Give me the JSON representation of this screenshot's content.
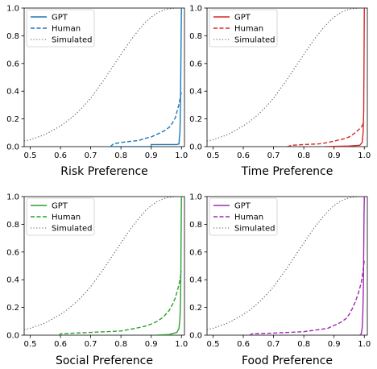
{
  "chart_data": [
    {
      "type": "line",
      "title": "Risk Preference",
      "xlim": [
        0.48,
        1.01
      ],
      "ylim": [
        0,
        1.0
      ],
      "xticks": [
        "0.5",
        "0.6",
        "0.7",
        "0.8",
        "0.9",
        "1.0"
      ],
      "yticks": [
        "0.0",
        "0.2",
        "0.4",
        "0.6",
        "0.8",
        "1.0"
      ],
      "grid": false,
      "legend": "top-left",
      "series": [
        {
          "name": "GPT",
          "style": "solid",
          "color": "#1f77b4",
          "x": [
            0.765,
            0.9,
            0.9,
            0.985,
            0.992,
            0.993,
            0.995,
            0.996,
            0.997,
            0.998,
            0.999,
            1.0
          ],
          "y": [
            0.0,
            0.0,
            0.015,
            0.015,
            0.02,
            0.06,
            0.1,
            0.2,
            0.35,
            0.55,
            0.8,
            1.0
          ]
        },
        {
          "name": "Human",
          "style": "dashed",
          "color": "#1f77b4",
          "x": [
            0.765,
            0.775,
            0.8,
            0.82,
            0.84,
            0.86,
            0.88,
            0.9,
            0.92,
            0.94,
            0.96,
            0.97,
            0.98,
            0.985,
            0.99,
            0.995,
            1.0
          ],
          "y": [
            0.0,
            0.02,
            0.03,
            0.035,
            0.04,
            0.045,
            0.06,
            0.07,
            0.09,
            0.11,
            0.14,
            0.17,
            0.21,
            0.25,
            0.29,
            0.34,
            0.4
          ]
        }
      ]
    },
    {
      "type": "line",
      "title": "Time Preference",
      "xlim": [
        0.48,
        1.01
      ],
      "ylim": [
        0,
        1.0
      ],
      "xticks": [
        "0.5",
        "0.6",
        "0.7",
        "0.8",
        "0.9",
        "1.0"
      ],
      "yticks": [
        "0.0",
        "0.2",
        "0.4",
        "0.6",
        "0.8",
        "1.0"
      ],
      "grid": false,
      "legend": "top-left",
      "series": [
        {
          "name": "GPT",
          "style": "solid",
          "color": "#d62728",
          "x": [
            0.87,
            0.95,
            0.985,
            0.993,
            0.996,
            0.998,
            0.999,
            1.0
          ],
          "y": [
            0.0,
            0.005,
            0.01,
            0.03,
            0.1,
            0.25,
            0.6,
            1.0
          ]
        },
        {
          "name": "Human",
          "style": "dashed",
          "color": "#d62728",
          "x": [
            0.745,
            0.76,
            0.8,
            0.85,
            0.88,
            0.9,
            0.93,
            0.95,
            0.97,
            0.98,
            0.99,
            0.995,
            1.0
          ],
          "y": [
            0.0,
            0.01,
            0.015,
            0.02,
            0.03,
            0.04,
            0.055,
            0.07,
            0.1,
            0.12,
            0.14,
            0.16,
            0.18
          ]
        }
      ]
    },
    {
      "type": "line",
      "title": "Social Preference",
      "xlim": [
        0.48,
        1.01
      ],
      "ylim": [
        0,
        1.0
      ],
      "xticks": [
        "0.5",
        "0.6",
        "0.7",
        "0.8",
        "0.9",
        "1.0"
      ],
      "yticks": [
        "0.0",
        "0.2",
        "0.4",
        "0.6",
        "0.8",
        "1.0"
      ],
      "grid": false,
      "legend": "top-left",
      "series": [
        {
          "name": "GPT",
          "style": "solid",
          "color": "#2ca02c",
          "x": [
            0.915,
            0.96,
            0.985,
            0.992,
            0.995,
            0.997,
            0.998,
            0.999,
            1.0
          ],
          "y": [
            0.0,
            0.005,
            0.02,
            0.05,
            0.12,
            0.25,
            0.45,
            0.75,
            1.0
          ]
        },
        {
          "name": "Human",
          "style": "dashed",
          "color": "#2ca02c",
          "x": [
            0.595,
            0.6,
            0.65,
            0.7,
            0.75,
            0.8,
            0.85,
            0.88,
            0.9,
            0.92,
            0.94,
            0.96,
            0.97,
            0.98,
            0.985,
            0.99,
            0.995,
            1.0
          ],
          "y": [
            0.0,
            0.01,
            0.015,
            0.02,
            0.025,
            0.03,
            0.05,
            0.065,
            0.08,
            0.1,
            0.13,
            0.18,
            0.22,
            0.27,
            0.31,
            0.35,
            0.4,
            0.46
          ]
        }
      ]
    },
    {
      "type": "line",
      "title": "Food Preference",
      "xlim": [
        0.48,
        1.01
      ],
      "ylim": [
        0,
        1.0
      ],
      "xticks": [
        "0.5",
        "0.6",
        "0.7",
        "0.8",
        "0.9",
        "1.0"
      ],
      "yticks": [
        "0.0",
        "0.2",
        "0.4",
        "0.6",
        "0.8",
        "1.0"
      ],
      "grid": false,
      "legend": "top-left",
      "series": [
        {
          "name": "GPT",
          "style": "solid",
          "color": "#9f2bb0",
          "x": [
            0.985,
            0.99,
            0.993,
            0.995,
            0.997,
            0.998,
            0.999,
            1.0
          ],
          "y": [
            0.0,
            0.01,
            0.05,
            0.15,
            0.35,
            0.6,
            0.85,
            1.0
          ]
        },
        {
          "name": "Human",
          "style": "dashed",
          "color": "#9f2bb0",
          "x": [
            0.62,
            0.63,
            0.7,
            0.75,
            0.8,
            0.85,
            0.88,
            0.9,
            0.92,
            0.94,
            0.95,
            0.96,
            0.97,
            0.98,
            0.99,
            0.995,
            1.0
          ],
          "y": [
            0.0,
            0.01,
            0.015,
            0.02,
            0.025,
            0.04,
            0.05,
            0.07,
            0.09,
            0.12,
            0.15,
            0.19,
            0.24,
            0.3,
            0.38,
            0.45,
            0.54
          ]
        }
      ]
    }
  ],
  "simulated": {
    "name": "Simulated",
    "style": "dotted",
    "color": "#555555",
    "x": [
      0.48,
      0.5,
      0.52,
      0.54,
      0.56,
      0.58,
      0.6,
      0.62,
      0.64,
      0.66,
      0.68,
      0.7,
      0.72,
      0.74,
      0.76,
      0.78,
      0.8,
      0.82,
      0.84,
      0.86,
      0.88,
      0.9,
      0.92,
      0.94,
      0.96,
      0.98,
      1.0
    ],
    "y": [
      0.04,
      0.05,
      0.065,
      0.08,
      0.1,
      0.125,
      0.15,
      0.18,
      0.215,
      0.255,
      0.3,
      0.35,
      0.41,
      0.47,
      0.535,
      0.6,
      0.665,
      0.73,
      0.79,
      0.845,
      0.895,
      0.935,
      0.965,
      0.985,
      0.995,
      0.999,
      1.0
    ]
  }
}
